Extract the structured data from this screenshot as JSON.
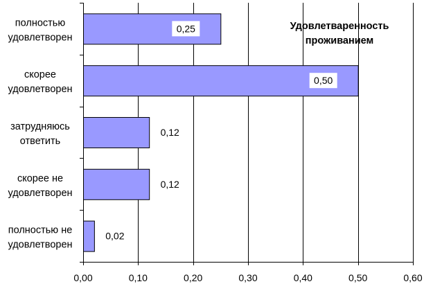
{
  "chart_data": {
    "type": "bar",
    "orientation": "horizontal",
    "title_lines": [
      "Удовлетваренность",
      "проживанием"
    ],
    "categories": [
      [
        "полностью",
        "удовлетворен"
      ],
      [
        "скорее",
        "удовлетворен"
      ],
      [
        "затрудняюсь",
        "ответить"
      ],
      [
        "скорее не",
        "удовлетворен"
      ],
      [
        "полностью не",
        "удовлетворен"
      ]
    ],
    "values": [
      0.25,
      0.5,
      0.12,
      0.12,
      0.02
    ],
    "value_labels": [
      "0,25",
      "0,50",
      "0,12",
      "0,12",
      "0,02"
    ],
    "xlim": [
      0,
      0.6
    ],
    "xticks": [
      0,
      0.1,
      0.2,
      0.3,
      0.4,
      0.5,
      0.6
    ],
    "xtick_labels": [
      "0,00",
      "0,10",
      "0,20",
      "0,30",
      "0,40",
      "0,50",
      "0,60"
    ],
    "grid": true,
    "xlabel": "",
    "ylabel": "",
    "colors": {
      "bar": "#9999ff",
      "bar_border": "#000000",
      "grid": "#000000"
    }
  }
}
